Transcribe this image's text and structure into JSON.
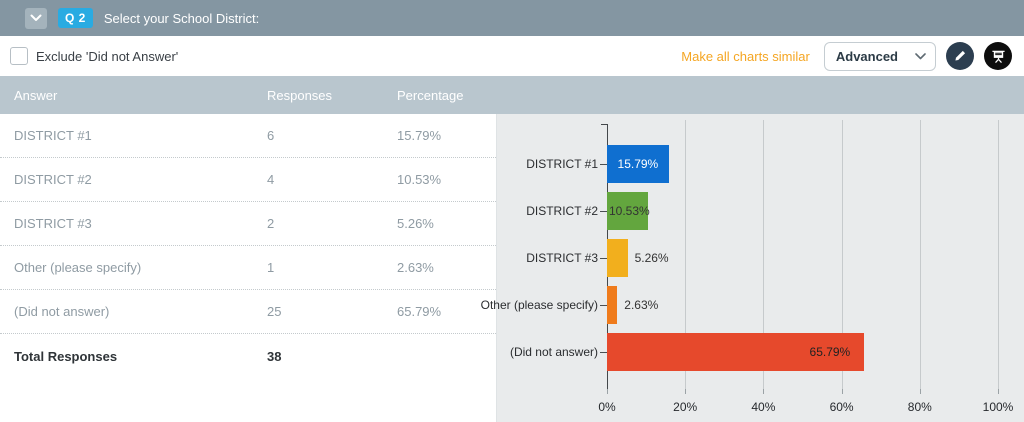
{
  "topbar": {
    "question_badge": "Q 2",
    "title": "Select your School District:",
    "badge_color": "#29abe2"
  },
  "toolbar": {
    "exclude_label": "Exclude 'Did not Answer'",
    "exclude_checked": false,
    "make_similar_label": "Make all charts similar",
    "make_similar_color": "#f5a623",
    "chart_type_selected": "Advanced"
  },
  "table": {
    "headers": [
      "Answer",
      "Responses",
      "Percentage"
    ],
    "rows": [
      {
        "answer": "DISTRICT #1",
        "responses": "6",
        "percentage": "15.79%"
      },
      {
        "answer": "DISTRICT #2",
        "responses": "4",
        "percentage": "10.53%"
      },
      {
        "answer": "DISTRICT #3",
        "responses": "2",
        "percentage": "5.26%"
      },
      {
        "answer": "Other (please specify)",
        "responses": "1",
        "percentage": "2.63%"
      },
      {
        "answer": "(Did not answer)",
        "responses": "25",
        "percentage": "65.79%"
      }
    ],
    "total_label": "Total Responses",
    "total_value": "38"
  },
  "chart_data": {
    "type": "bar",
    "orientation": "horizontal",
    "categories": [
      "DISTRICT #1",
      "DISTRICT #2",
      "DISTRICT #3",
      "Other (please specify)",
      "(Did not answer)"
    ],
    "values": [
      15.79,
      10.53,
      5.26,
      2.63,
      65.79
    ],
    "value_labels": [
      "15.79%",
      "10.53%",
      "5.26%",
      "2.63%",
      "65.79%"
    ],
    "bar_colors": [
      "#0f6fd0",
      "#63a63e",
      "#f2af1d",
      "#ef7b1c",
      "#e6492c"
    ],
    "label_placements": [
      "inside-center",
      "inside-left",
      "outside",
      "outside",
      "inside-right"
    ],
    "label_colors": [
      "#ffffff",
      "#333333",
      "#333333",
      "#333333",
      "#222222"
    ],
    "xlim": [
      0,
      100
    ],
    "x_tick_values": [
      0,
      20,
      40,
      60,
      80,
      100
    ],
    "x_tick_labels": [
      "0%",
      "20%",
      "40%",
      "60%",
      "80%",
      "100%"
    ],
    "grid": true,
    "legend": false,
    "background": "#e9ebec"
  }
}
